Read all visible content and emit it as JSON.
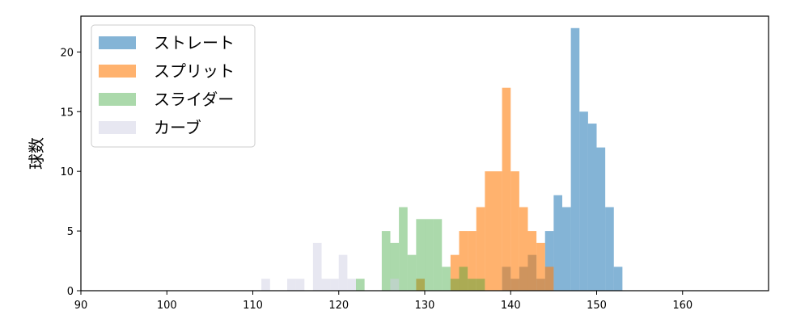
{
  "chart_data": {
    "type": "bar",
    "histogram": true,
    "ylabel": "球数",
    "xlabel": "",
    "xlim": [
      90,
      170
    ],
    "ylim": [
      0,
      23
    ],
    "xticks": [
      90,
      100,
      110,
      120,
      130,
      140,
      150,
      160
    ],
    "yticks": [
      0,
      5,
      10,
      15,
      20
    ],
    "grid": false,
    "legend_position": "top-left",
    "bin_width": 1,
    "series": [
      {
        "name": "ストレート",
        "color": "#1f77b4",
        "opacity": 0.55,
        "bins": [
          {
            "x0": 139,
            "count": 2
          },
          {
            "x0": 140,
            "count": 1
          },
          {
            "x0": 141,
            "count": 2
          },
          {
            "x0": 142,
            "count": 3
          },
          {
            "x0": 143,
            "count": 1
          },
          {
            "x0": 144,
            "count": 5
          },
          {
            "x0": 145,
            "count": 8
          },
          {
            "x0": 146,
            "count": 7
          },
          {
            "x0": 147,
            "count": 22
          },
          {
            "x0": 148,
            "count": 15
          },
          {
            "x0": 149,
            "count": 14
          },
          {
            "x0": 150,
            "count": 12
          },
          {
            "x0": 151,
            "count": 7
          },
          {
            "x0": 152,
            "count": 2
          }
        ]
      },
      {
        "name": "スプリット",
        "color": "#ff7f0e",
        "opacity": 0.6,
        "bins": [
          {
            "x0": 129,
            "count": 1
          },
          {
            "x0": 133,
            "count": 3
          },
          {
            "x0": 134,
            "count": 5
          },
          {
            "x0": 135,
            "count": 5
          },
          {
            "x0": 136,
            "count": 7
          },
          {
            "x0": 137,
            "count": 10
          },
          {
            "x0": 138,
            "count": 10
          },
          {
            "x0": 139,
            "count": 17
          },
          {
            "x0": 140,
            "count": 10
          },
          {
            "x0": 141,
            "count": 7
          },
          {
            "x0": 142,
            "count": 5
          },
          {
            "x0": 143,
            "count": 4
          },
          {
            "x0": 144,
            "count": 2
          }
        ]
      },
      {
        "name": "スライダー",
        "color": "#2ca02c",
        "opacity": 0.4,
        "bins": [
          {
            "x0": 122,
            "count": 1
          },
          {
            "x0": 125,
            "count": 5
          },
          {
            "x0": 126,
            "count": 4
          },
          {
            "x0": 127,
            "count": 7
          },
          {
            "x0": 128,
            "count": 3
          },
          {
            "x0": 129,
            "count": 6
          },
          {
            "x0": 130,
            "count": 6
          },
          {
            "x0": 131,
            "count": 6
          },
          {
            "x0": 132,
            "count": 2
          },
          {
            "x0": 133,
            "count": 1
          },
          {
            "x0": 134,
            "count": 2
          },
          {
            "x0": 135,
            "count": 1
          },
          {
            "x0": 136,
            "count": 1
          }
        ]
      },
      {
        "name": "カーブ",
        "color": "#d0d0e4",
        "opacity": 0.5,
        "bins": [
          {
            "x0": 111,
            "count": 1
          },
          {
            "x0": 114,
            "count": 1
          },
          {
            "x0": 115,
            "count": 1
          },
          {
            "x0": 117,
            "count": 4
          },
          {
            "x0": 118,
            "count": 1
          },
          {
            "x0": 119,
            "count": 1
          },
          {
            "x0": 120,
            "count": 3
          },
          {
            "x0": 121,
            "count": 1
          },
          {
            "x0": 126,
            "count": 1
          }
        ]
      }
    ]
  }
}
